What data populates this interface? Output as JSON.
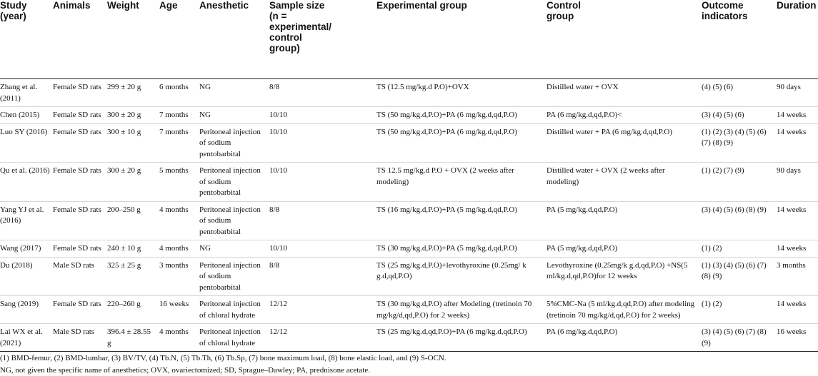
{
  "columns": [
    "Study (year)",
    "Animals",
    "Weight",
    "Age",
    "Anesthetic",
    "Sample size (n = experimental/ control group)",
    "Experimental group",
    "Control group",
    "Outcome indicators",
    "Duration"
  ],
  "rows": [
    {
      "study": "Zhang et al. (2011)",
      "animals": "Female SD rats",
      "weight": "299 ± 20 g",
      "age": "6 months",
      "anesthetic": "NG",
      "sample_size": "8/8",
      "experimental_group": "TS (12.5 mg/kg.d P.O)+OVX",
      "control_group": "Distilled water + OVX",
      "outcome_indicators": "(4) (5) (6)",
      "duration": "90 days"
    },
    {
      "study": "Chen (2015)",
      "animals": "Female SD rats",
      "weight": "300 ± 20 g",
      "age": "7 months",
      "anesthetic": "NG",
      "sample_size": "10/10",
      "experimental_group": "TS (50 mg/kg.d,P.O)+PA (6 mg/kg.d,qd,P.O)",
      "control_group": "PA (6 mg/kg.d,qd,P.O)<",
      "outcome_indicators": "(3) (4) (5) (6)",
      "duration": "14 weeks"
    },
    {
      "study": "Luo SY (2016)",
      "animals": "Female SD rats",
      "weight": "300 ± 10 g",
      "age": "7 months",
      "anesthetic": "Peritoneal injection of sodium pentobarbital",
      "sample_size": "10/10",
      "experimental_group": "TS (50 mg/kg.d,P.O)+PA (6 mg/kg.d,qd,P.O)",
      "control_group": "Distilled water + PA (6 mg/kg.d,qd,P.O)",
      "outcome_indicators": "(1) (2) (3) (4) (5) (6) (7) (8) (9)",
      "duration": "14 weeks"
    },
    {
      "study": "Qu et al. (2016)",
      "animals": "Female SD rats",
      "weight": "300 ± 20 g",
      "age": "5 months",
      "anesthetic": "Peritoneal injection of sodium pentobarbital",
      "sample_size": "10/10",
      "experimental_group": "TS 12.5 mg/kg.d P.O + OVX (2 weeks after modeling)",
      "control_group": "Distilled water + OVX (2 weeks after modeling)",
      "outcome_indicators": "(1) (2) (7) (9)",
      "duration": "90 days"
    },
    {
      "study": "Yang YJ et al. (2016)",
      "animals": "Female SD rats",
      "weight": "200–250 g",
      "age": "4 months",
      "anesthetic": "Peritoneal injection of sodium pentobarbital",
      "sample_size": "8/8",
      "experimental_group": "TS (16 mg/kg.d,P.O)+PA (5 mg/kg.d,qd,P.O)",
      "control_group": "PA (5 mg/kg.d,qd,P.O)",
      "outcome_indicators": "(3) (4) (5) (6) (8) (9)",
      "duration": "14 weeks"
    },
    {
      "study": "Wang (2017)",
      "animals": "Female SD rats",
      "weight": "240 ± 10 g",
      "age": "4 months",
      "anesthetic": "NG",
      "sample_size": "10/10",
      "experimental_group": "TS (30 mg/kg.d,P.O)+PA (5 mg/kg.d,qd,P.O)",
      "control_group": "PA (5 mg/kg.d,qd,P.O)",
      "outcome_indicators": "(1) (2)",
      "duration": "14 weeks"
    },
    {
      "study": "Du (2018)",
      "animals": "Male SD rats",
      "weight": "325 ± 25 g",
      "age": "3 months",
      "anesthetic": "Peritoneal injection of sodium pentobarbital",
      "sample_size": "8/8",
      "experimental_group": "TS (25 mg/kg.d,P.O)+levothyroxine (0.25mg/ k g.d,qd,P.O)",
      "control_group": "Levothyroxine (0.25mg/k g.d,qd,P.O) +NS(5 ml/kg.d,qd,P.O)for 12 weeks",
      "outcome_indicators": "(1) (3) (4) (5) (6) (7) (8) (9)",
      "duration": "3 months"
    },
    {
      "study": "Sang (2019)",
      "animals": "Female SD rats",
      "weight": "220–260 g",
      "age": "16 weeks",
      "anesthetic": "Peritoneal injection of chloral hydrate",
      "sample_size": "12/12",
      "experimental_group": "TS (30 mg/kg.d,P.O) after Modeling (tretinoin 70 mg/kg/d,qd,P.O) for 2 weeks)",
      "control_group": "5%CMC-Na (5 ml/kg.d,qd,P.O) after modeling (tretinoin 70 mg/kg/d,qd,P.O) for 2 weeks)",
      "outcome_indicators": "(1) (2)",
      "duration": "14 weeks"
    },
    {
      "study": "Lai WX et al. (2021)",
      "animals": "Male SD rats",
      "weight": "396.4 ± 28.55 g",
      "age": "4 months",
      "anesthetic": "Peritoneal injection of chloral hydrate",
      "sample_size": "12/12",
      "experimental_group": "TS (25 mg/kg.d,qd,P.O)+PA (6 mg/kg.d,qd,P.O)",
      "control_group": "PA (6 mg/kg.d,qd,P.O)",
      "outcome_indicators": "(3) (4) (5) (6) (7) (8) (9)",
      "duration": "16 weeks"
    }
  ],
  "footnotes": [
    "(1) BMD-femur, (2) BMD-lumbar, (3) BV/TV, (4) Tb.N, (5) Tb.Th, (6) Tb.Sp, (7) bone maximum load, (8) bone elastic load, and (9) S-OCN.",
    "NG, not given the specific name of anesthetics; OVX, ovariectomized; SD, Sprague–Dawley; PA, prednisone acetate."
  ]
}
